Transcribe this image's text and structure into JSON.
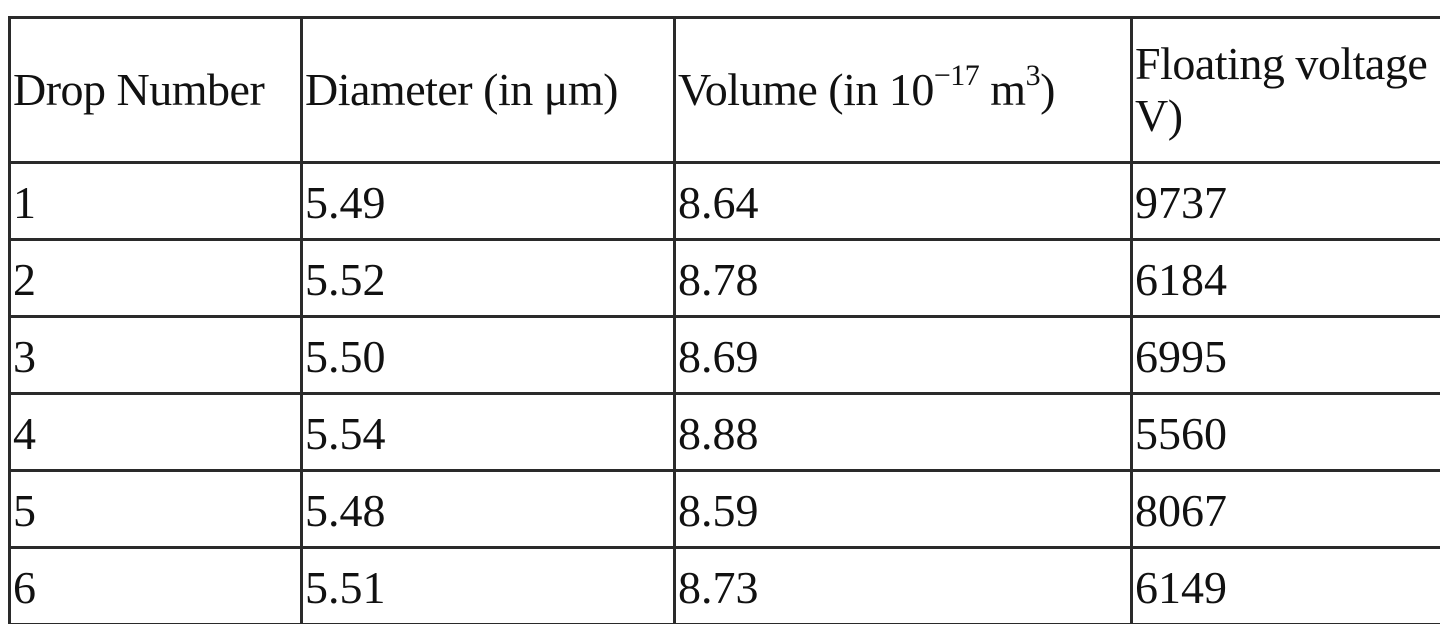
{
  "table": {
    "headers": {
      "drop_number": "Drop Number",
      "diameter": "Diameter (in μm)",
      "volume_prefix": "Volume (in 10",
      "volume_exponent": "−17",
      "volume_unit": " m",
      "volume_unit_exponent": "3",
      "volume_suffix": ")",
      "floating_voltage": "Floating voltage (in V)"
    },
    "rows": [
      {
        "drop": "1",
        "diameter": "5.49",
        "volume": "8.64",
        "voltage": "9737"
      },
      {
        "drop": "2",
        "diameter": "5.52",
        "volume": "8.78",
        "voltage": "6184"
      },
      {
        "drop": "3",
        "diameter": "5.50",
        "volume": "8.69",
        "voltage": "6995"
      },
      {
        "drop": "4",
        "diameter": "5.54",
        "volume": "8.88",
        "voltage": "5560"
      },
      {
        "drop": "5",
        "diameter": "5.48",
        "volume": "8.59",
        "voltage": "8067"
      },
      {
        "drop": "6",
        "diameter": "5.51",
        "volume": "8.73",
        "voltage": "6149"
      }
    ]
  }
}
